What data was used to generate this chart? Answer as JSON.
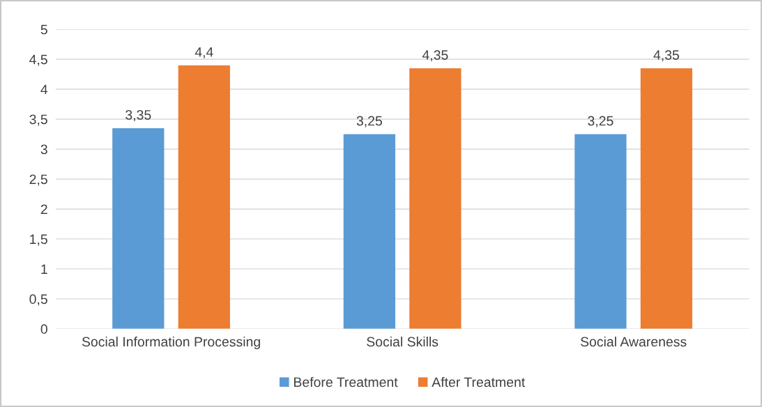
{
  "chart_data": {
    "type": "bar",
    "categories": [
      "Social Information Processing",
      "Social Skills",
      "Social Awareness"
    ],
    "series": [
      {
        "name": "Before Treatment",
        "color": "#5b9bd5",
        "values": [
          3.35,
          3.25,
          3.25
        ],
        "value_labels": [
          "3,35",
          "3,25",
          "3,25"
        ]
      },
      {
        "name": "After Treatment",
        "color": "#ed7d31",
        "values": [
          4.4,
          4.35,
          4.35
        ],
        "value_labels": [
          "4,4",
          "4,35",
          "4,35"
        ]
      }
    ],
    "ylim": [
      0,
      5
    ],
    "yticks": [
      0,
      {
        "value": 0.5,
        "label": "0,5"
      },
      1,
      {
        "value": 1.5,
        "label": "1,5"
      },
      2,
      {
        "value": 2.5,
        "label": "2,5"
      },
      3,
      {
        "value": 3.5,
        "label": "3,5"
      },
      4,
      {
        "value": 4.5,
        "label": "4,5"
      },
      5
    ],
    "grid": "y",
    "legend": "bottom"
  }
}
